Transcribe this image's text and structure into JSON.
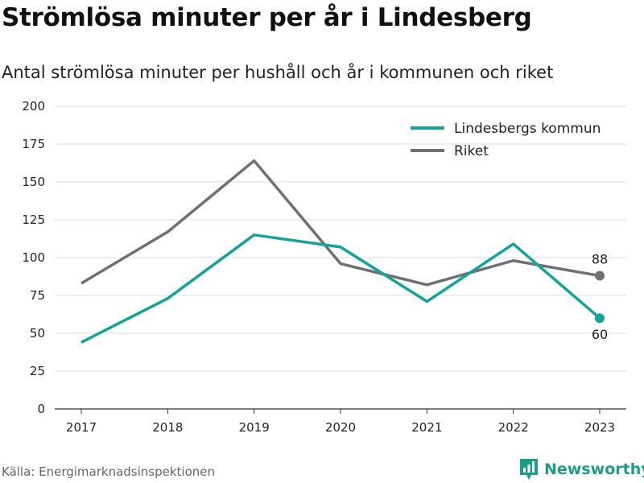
{
  "title": "Strömlösa minuter per år i Lindesberg",
  "subtitle": "Antal strömlösa minuter per hushåll och år i kommunen och riket",
  "source": "Källa: Energimarknadsinspektionen",
  "brand": {
    "name": "Newsworthy",
    "icon": "newsworthy-logo-icon",
    "color": "#1f9b8c"
  },
  "chart_data": {
    "type": "line",
    "x": [
      "2017",
      "2018",
      "2019",
      "2020",
      "2021",
      "2022",
      "2023"
    ],
    "ylim": [
      0,
      200
    ],
    "yticks": [
      0,
      25,
      50,
      75,
      100,
      125,
      150,
      175,
      200
    ],
    "grid": true,
    "legend_position": "top-right",
    "series": [
      {
        "name": "Lindesbergs kommun",
        "color": "#12a39a",
        "values": [
          44,
          73,
          115,
          107,
          71,
          109,
          60
        ],
        "end_label": "60"
      },
      {
        "name": "Riket",
        "color": "#707070",
        "values": [
          83,
          117,
          164,
          96,
          82,
          98,
          88
        ],
        "end_label": "88"
      }
    ]
  }
}
